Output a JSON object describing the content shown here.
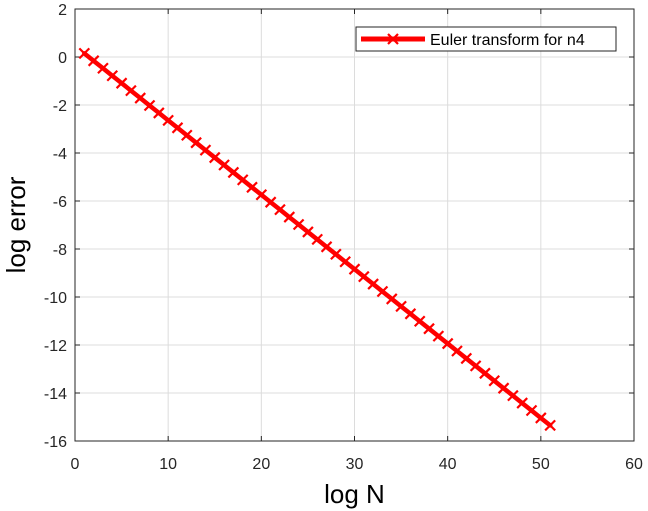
{
  "chart_data": {
    "type": "line",
    "title": "",
    "xlabel": "log N",
    "ylabel": "log error",
    "xlim": [
      0,
      60
    ],
    "ylim": [
      -16,
      2
    ],
    "xticks": [
      0,
      10,
      20,
      30,
      40,
      50,
      60
    ],
    "yticks": [
      2,
      0,
      -2,
      -4,
      -6,
      -8,
      -10,
      -12,
      -14,
      -16
    ],
    "xtick_labels": [
      "0",
      "10",
      "20",
      "30",
      "40",
      "50",
      "60"
    ],
    "ytick_labels": [
      "2",
      "0",
      "-2",
      "-4",
      "-6",
      "-8",
      "-10",
      "-12",
      "-14",
      "-16"
    ],
    "grid": true,
    "legend_position": "top-right",
    "series": [
      {
        "name": "Euler transform for n4",
        "color": "#ff0000",
        "marker": "x",
        "x": [
          1,
          2,
          3,
          4,
          5,
          6,
          7,
          8,
          9,
          10,
          11,
          12,
          13,
          14,
          15,
          16,
          17,
          18,
          19,
          20,
          21,
          22,
          23,
          24,
          25,
          26,
          27,
          28,
          29,
          30,
          31,
          32,
          33,
          34,
          35,
          36,
          37,
          38,
          39,
          40,
          41,
          42,
          43,
          44,
          45,
          46,
          47,
          48,
          49,
          50,
          51
        ],
        "y": [
          0.15,
          -0.16,
          -0.47,
          -0.78,
          -1.09,
          -1.4,
          -1.71,
          -2.02,
          -2.33,
          -2.64,
          -2.95,
          -3.26,
          -3.57,
          -3.88,
          -4.19,
          -4.5,
          -4.81,
          -5.12,
          -5.43,
          -5.74,
          -6.05,
          -6.36,
          -6.67,
          -6.98,
          -7.29,
          -7.6,
          -7.91,
          -8.22,
          -8.53,
          -8.84,
          -9.15,
          -9.46,
          -9.77,
          -10.08,
          -10.39,
          -10.7,
          -11.01,
          -11.32,
          -11.63,
          -11.94,
          -12.25,
          -12.56,
          -12.87,
          -13.18,
          -13.49,
          -13.8,
          -14.11,
          -14.42,
          -14.73,
          -15.04,
          -15.35
        ]
      }
    ]
  }
}
